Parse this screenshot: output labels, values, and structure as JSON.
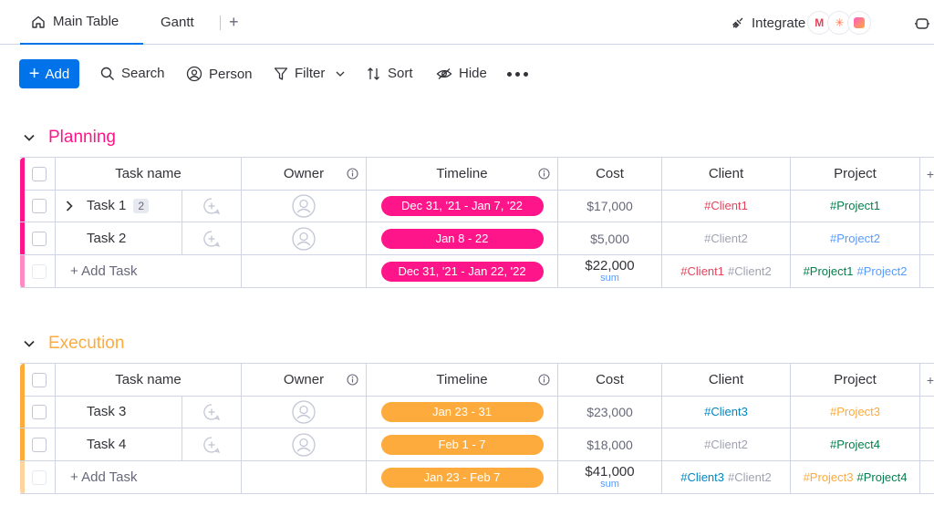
{
  "tabs": {
    "main": "Main Table",
    "gantt": "Gantt",
    "add": "+"
  },
  "integrate": {
    "label": "Integrate",
    "apps": [
      "gmail-icon",
      "hubspot-icon",
      "app-icon"
    ]
  },
  "toolbar": {
    "add": "Add",
    "search": "Search",
    "person": "Person",
    "filter": "Filter",
    "sort": "Sort",
    "hide": "Hide"
  },
  "columns": {
    "task": "Task name",
    "owner": "Owner",
    "timeline": "Timeline",
    "cost": "Cost",
    "client": "Client",
    "project": "Project",
    "more": "+"
  },
  "groups": [
    {
      "title": "Planning",
      "color": "#ff158a",
      "color_light": "#ff8ac4",
      "rows": [
        {
          "task": "Task 1",
          "subitems": "2",
          "timeline": "Dec 31, '21 - Jan 7, '22",
          "cost": "$17,000",
          "client": "#Client1",
          "client_color": "#e2445c",
          "project": "#Project1",
          "project_color": "#037f4c"
        },
        {
          "task": "Task 2",
          "subitems": "",
          "timeline": "Jan 8 - 22",
          "cost": "$5,000",
          "client": "#Client2",
          "client_color": "#a0a2b0",
          "project": "#Project2",
          "project_color": "#579bfc"
        }
      ],
      "summary": {
        "add_task": "+ Add Task",
        "timeline": "Dec 31, '21 - Jan 22, '22",
        "cost": "$22,000",
        "cost_label": "sum",
        "clients": [
          {
            "text": "#Client1",
            "color": "#e2445c"
          },
          {
            "text": "#Client2",
            "color": "#a0a2b0"
          }
        ],
        "projects": [
          {
            "text": "#Project1",
            "color": "#037f4c"
          },
          {
            "text": "#Project2",
            "color": "#579bfc"
          }
        ]
      }
    },
    {
      "title": "Execution",
      "color": "#fdab3d",
      "color_light": "#fed59e",
      "rows": [
        {
          "task": "Task 3",
          "subitems": "",
          "timeline": "Jan 23 - 31",
          "cost": "$23,000",
          "client": "#Client3",
          "client_color": "#0086c0",
          "project": "#Project3",
          "project_color": "#fdab3d"
        },
        {
          "task": "Task 4",
          "subitems": "",
          "timeline": "Feb 1 - 7",
          "cost": "$18,000",
          "client": "#Client2",
          "client_color": "#a0a2b0",
          "project": "#Project4",
          "project_color": "#037f4c"
        }
      ],
      "summary": {
        "add_task": "+ Add Task",
        "timeline": "Jan 23 - Feb 7",
        "cost": "$41,000",
        "cost_label": "sum",
        "clients": [
          {
            "text": "#Client3",
            "color": "#0086c0"
          },
          {
            "text": "#Client2",
            "color": "#a0a2b0"
          }
        ],
        "projects": [
          {
            "text": "#Project3",
            "color": "#fdab3d"
          },
          {
            "text": "#Project4",
            "color": "#037f4c"
          }
        ]
      }
    }
  ]
}
